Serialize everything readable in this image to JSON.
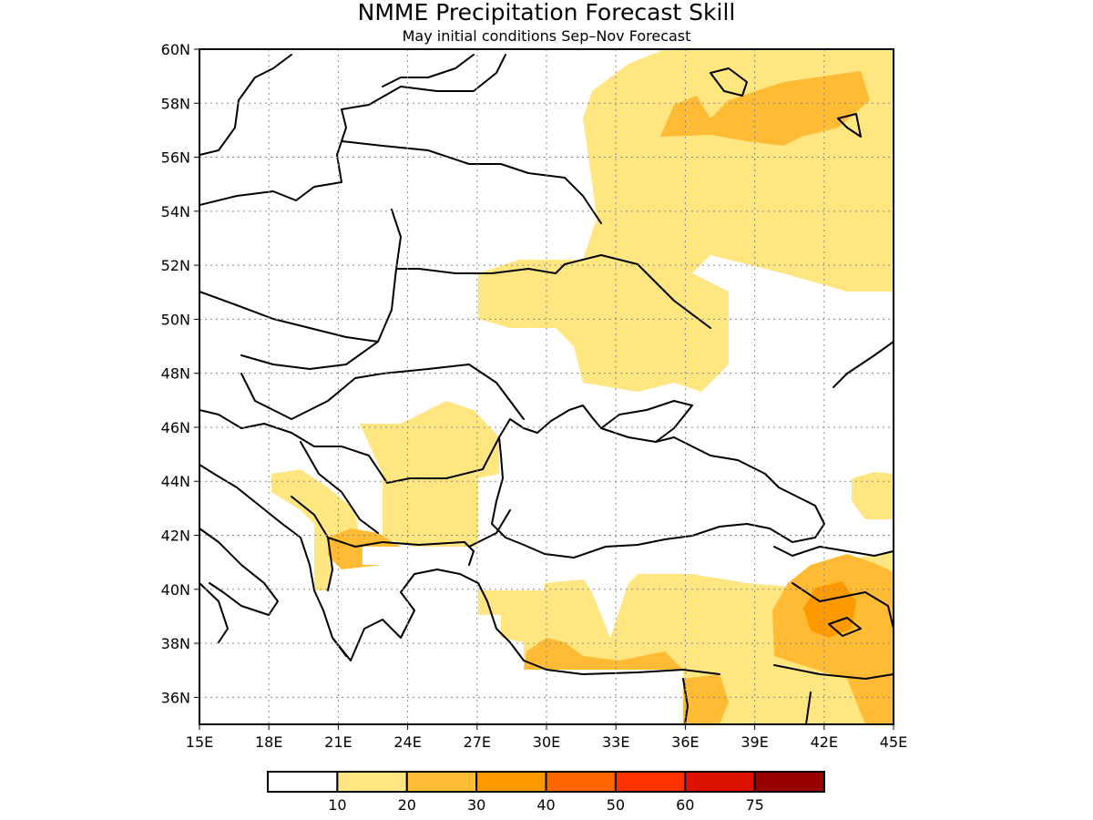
{
  "title": "NMME Precipitation Forecast Skill",
  "subtitle": "May initial conditions  Sep–Nov Forecast",
  "axes": {
    "lon_labels": [
      "15E",
      "18E",
      "21E",
      "24E",
      "27E",
      "30E",
      "33E",
      "36E",
      "39E",
      "42E",
      "45E"
    ],
    "lat_labels": [
      "60N",
      "58N",
      "56N",
      "54N",
      "52N",
      "50N",
      "48N",
      "46N",
      "44N",
      "42N",
      "40N",
      "38N",
      "36N"
    ]
  },
  "legend": {
    "labels": [
      "10",
      "20",
      "30",
      "40",
      "50",
      "60",
      "75"
    ],
    "colors": [
      "#ffffff",
      "#ffe680",
      "#ffbb33",
      "#ff9900",
      "#ff6600",
      "#ff3300",
      "#dd1100",
      "#990000"
    ]
  }
}
